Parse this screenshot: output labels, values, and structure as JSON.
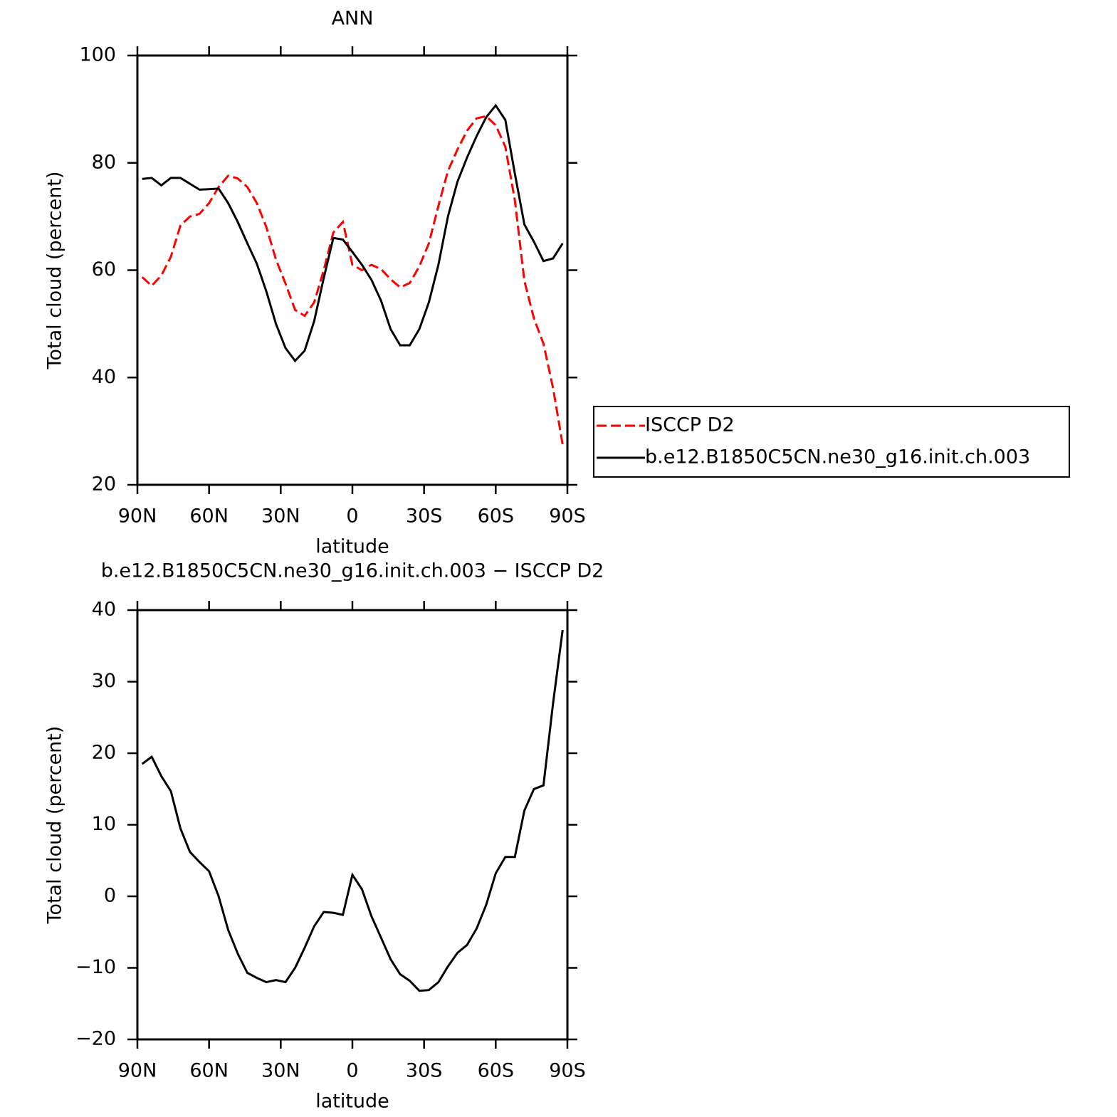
{
  "chart_data": [
    {
      "type": "line",
      "title": "ANN",
      "xlabel": "latitude",
      "ylabel": "Total cloud (percent)",
      "x": [
        88,
        84,
        80,
        76,
        72,
        68,
        64,
        60,
        56,
        52,
        48,
        44,
        40,
        36,
        32,
        28,
        24,
        20,
        16,
        12,
        8,
        4,
        0,
        -4,
        -8,
        -12,
        -16,
        -20,
        -24,
        -28,
        -32,
        -36,
        -40,
        -44,
        -48,
        -52,
        -56,
        -60,
        -64,
        -68,
        -72,
        -76,
        -80,
        -84,
        -88
      ],
      "series": [
        {
          "name": "ISCCP D2",
          "color": "#ff0000",
          "dash": true,
          "values": [
            58.7,
            57.1,
            59,
            62.5,
            68.3,
            70,
            70.5,
            72.5,
            75.5,
            77.6,
            77.1,
            75.5,
            72.5,
            68,
            62,
            57.5,
            52.6,
            51.5,
            54,
            60,
            67,
            69,
            61,
            60,
            61,
            60.2,
            58.3,
            56.8,
            57.6,
            60.7,
            65,
            72,
            78.5,
            82.5,
            86,
            88.3,
            88.7,
            87,
            83,
            73,
            58,
            51,
            46.3,
            38,
            27.5
          ]
        },
        {
          "name": "b.e12.B1850C5CN.ne30_g16.init.ch.003",
          "color": "#000000",
          "dash": false,
          "values": [
            77,
            77.2,
            75.8,
            77.2,
            77.2,
            76.1,
            75,
            75.1,
            75.2,
            72.5,
            69,
            65,
            61.2,
            56,
            50,
            45.5,
            43.1,
            45,
            50.5,
            58.5,
            66,
            65.7,
            63.4,
            61,
            58.2,
            54.3,
            49,
            46,
            46,
            49,
            54,
            61,
            70,
            76.5,
            81,
            85,
            88.5,
            90.7,
            88,
            78,
            68.5,
            65.3,
            61.7,
            62.2,
            65
          ]
        }
      ],
      "xlim": [
        90,
        -90
      ],
      "ylim": [
        20,
        100
      ],
      "xticks": [
        {
          "value": 90,
          "label": "90N"
        },
        {
          "value": 60,
          "label": "60N"
        },
        {
          "value": 30,
          "label": "30N"
        },
        0,
        {
          "value": -30,
          "label": "30S"
        },
        {
          "value": -60,
          "label": "60S"
        },
        {
          "value": -90,
          "label": "90S"
        }
      ],
      "yticks": [
        20,
        40,
        60,
        80,
        100
      ],
      "legend": "right"
    },
    {
      "type": "line",
      "title": "b.e12.B1850C5CN.ne30_g16.init.ch.003 − ISCCP D2",
      "xlabel": "latitude",
      "ylabel": "Total cloud (percent)",
      "x": [
        88,
        84,
        80,
        76,
        72,
        68,
        64,
        60,
        56,
        52,
        48,
        44,
        40,
        36,
        32,
        28,
        24,
        20,
        16,
        12,
        8,
        4,
        0,
        -4,
        -8,
        -12,
        -16,
        -20,
        -24,
        -28,
        -32,
        -36,
        -40,
        -44,
        -48,
        -52,
        -56,
        -60,
        -64,
        -68,
        -72,
        -76,
        -80,
        -84,
        -88
      ],
      "series": [
        {
          "color": "#000000",
          "dash": false,
          "values": [
            18.5,
            19.5,
            16.8,
            14.7,
            9.5,
            6.2,
            4.8,
            3.5,
            0,
            -4.7,
            -8,
            -10.7,
            -11.4,
            -12,
            -11.7,
            -12,
            -10,
            -7.2,
            -4.2,
            -2.2,
            -2.3,
            -2.6,
            3,
            1,
            -2.8,
            -5.8,
            -8.8,
            -10.9,
            -11.8,
            -13.2,
            -13.1,
            -12,
            -9.8,
            -7.9,
            -6.8,
            -4.5,
            -1.2,
            3.2,
            5.5,
            5.5,
            12,
            15,
            15.5,
            27,
            37.2
          ]
        }
      ],
      "xlim": [
        90,
        -90
      ],
      "ylim": [
        -20,
        40
      ],
      "xticks": [
        {
          "value": 90,
          "label": "90N"
        },
        {
          "value": 60,
          "label": "60N"
        },
        {
          "value": 30,
          "label": "30N"
        },
        0,
        {
          "value": -30,
          "label": "30S"
        },
        {
          "value": -60,
          "label": "60S"
        },
        {
          "value": -90,
          "label": "90S"
        }
      ],
      "yticks": [
        {
          "value": -20,
          "label": "−20"
        },
        {
          "value": -10,
          "label": "−10"
        },
        0,
        10,
        20,
        30,
        40
      ]
    }
  ]
}
